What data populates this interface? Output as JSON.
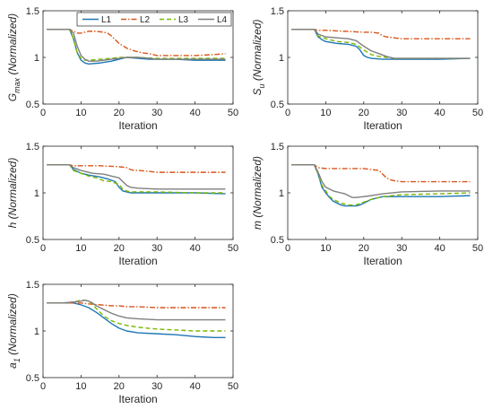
{
  "chart_data": {
    "type": "line",
    "legend": {
      "placement": "top",
      "entries": [
        "L1",
        "L2",
        "L3",
        "L4"
      ]
    },
    "series_styles": [
      {
        "name": "L1",
        "color": "#1f77b4",
        "dash": "solid"
      },
      {
        "name": "L2",
        "color": "#d9541a",
        "dash": "dashdot"
      },
      {
        "name": "L3",
        "color": "#7ab800",
        "dash": "dashed"
      },
      {
        "name": "L4",
        "color": "#7f7f7f",
        "dash": "solid"
      }
    ],
    "xlim": [
      0,
      50
    ],
    "ylim": [
      0.5,
      1.5
    ],
    "xticks": [
      "0",
      "10",
      "20",
      "30",
      "40",
      "50"
    ],
    "yticks": [
      "0.5",
      "1",
      "1.5"
    ],
    "grid": false,
    "panels": [
      {
        "xlabel": "Iteration",
        "ylabel_main": "G",
        "ylabel_sub": "max",
        "ylabel_rest": " (Normalized)",
        "series": [
          {
            "name": "L1",
            "x": [
              1,
              7,
              8,
              9,
              10,
              11,
              12,
              15,
              18,
              20,
              22,
              25,
              28,
              30,
              35,
              40,
              48
            ],
            "y": [
              1.3,
              1.3,
              1.2,
              1.05,
              0.97,
              0.94,
              0.93,
              0.94,
              0.96,
              0.98,
              1.0,
              0.99,
              0.98,
              0.98,
              0.98,
              0.97,
              0.97
            ]
          },
          {
            "name": "L2",
            "x": [
              1,
              7,
              8,
              9,
              10,
              12,
              14,
              16,
              17,
              18,
              20,
              22,
              24,
              26,
              28,
              30,
              35,
              40,
              45,
              48
            ],
            "y": [
              1.3,
              1.3,
              1.28,
              1.26,
              1.26,
              1.28,
              1.28,
              1.27,
              1.26,
              1.23,
              1.15,
              1.1,
              1.07,
              1.05,
              1.04,
              1.02,
              1.02,
              1.02,
              1.03,
              1.04
            ]
          },
          {
            "name": "L3",
            "x": [
              1,
              7,
              8,
              9,
              10,
              11,
              12,
              15,
              18,
              20,
              22,
              25,
              30,
              35,
              40,
              48
            ],
            "y": [
              1.3,
              1.3,
              1.2,
              1.05,
              0.99,
              0.97,
              0.97,
              0.98,
              0.99,
              1.0,
              1.0,
              1.0,
              0.99,
              0.99,
              0.99,
              0.99
            ]
          },
          {
            "name": "L4",
            "x": [
              1,
              7,
              8,
              9,
              10,
              11,
              12,
              14,
              16,
              18,
              20,
              22,
              25,
              28,
              30,
              35,
              40,
              48
            ],
            "y": [
              1.3,
              1.3,
              1.26,
              1.12,
              1.02,
              0.98,
              0.96,
              0.96,
              0.97,
              0.98,
              0.99,
              1.0,
              1.0,
              0.99,
              0.98,
              0.98,
              0.98,
              0.98
            ]
          }
        ]
      },
      {
        "xlabel": "Iteration",
        "ylabel_main": "S",
        "ylabel_sub": "u",
        "ylabel_rest": " (Normalized)",
        "series": [
          {
            "name": "L1",
            "x": [
              1,
              7,
              8,
              9,
              10,
              13,
              16,
              18,
              19,
              20,
              21,
              22,
              25,
              28,
              30,
              35,
              40,
              48
            ],
            "y": [
              1.3,
              1.3,
              1.22,
              1.19,
              1.17,
              1.15,
              1.14,
              1.12,
              1.08,
              1.02,
              1.0,
              0.99,
              0.98,
              0.98,
              0.98,
              0.98,
              0.98,
              0.99
            ]
          },
          {
            "name": "L2",
            "x": [
              1,
              7,
              8,
              10,
              15,
              20,
              22,
              24,
              25,
              26,
              28,
              30,
              35,
              40,
              48
            ],
            "y": [
              1.3,
              1.3,
              1.29,
              1.29,
              1.28,
              1.27,
              1.27,
              1.26,
              1.23,
              1.22,
              1.21,
              1.2,
              1.2,
              1.2,
              1.2
            ]
          },
          {
            "name": "L3",
            "x": [
              1,
              7,
              8,
              10,
              13,
              16,
              18,
              20,
              22,
              24,
              26,
              28,
              30,
              35,
              48
            ],
            "y": [
              1.3,
              1.3,
              1.23,
              1.2,
              1.17,
              1.16,
              1.14,
              1.08,
              1.03,
              1.01,
              1.0,
              0.99,
              0.99,
              0.99,
              0.99
            ]
          },
          {
            "name": "L4",
            "x": [
              1,
              7,
              8,
              10,
              13,
              16,
              18,
              20,
              22,
              24,
              26,
              28,
              30,
              35,
              40,
              48
            ],
            "y": [
              1.3,
              1.3,
              1.25,
              1.22,
              1.21,
              1.2,
              1.18,
              1.12,
              1.07,
              1.04,
              1.01,
              0.99,
              0.99,
              0.99,
              0.99,
              0.99
            ]
          }
        ]
      },
      {
        "xlabel": "Iteration",
        "ylabel_main": "h",
        "ylabel_sub": "",
        "ylabel_rest": " (Normalized)",
        "series": [
          {
            "name": "L1",
            "x": [
              1,
              7,
              8,
              10,
              12,
              15,
              17,
              19,
              20,
              21,
              22,
              23,
              25,
              30,
              35,
              40,
              48
            ],
            "y": [
              1.3,
              1.3,
              1.25,
              1.21,
              1.19,
              1.17,
              1.15,
              1.12,
              1.06,
              1.02,
              1.01,
              1.0,
              1.0,
              1.0,
              1.0,
              1.0,
              0.99
            ]
          },
          {
            "name": "L2",
            "x": [
              1,
              7,
              8,
              10,
              15,
              20,
              22,
              23,
              24,
              25,
              28,
              30,
              35,
              40,
              48
            ],
            "y": [
              1.3,
              1.3,
              1.29,
              1.29,
              1.29,
              1.28,
              1.27,
              1.25,
              1.24,
              1.24,
              1.23,
              1.22,
              1.22,
              1.22,
              1.22
            ]
          },
          {
            "name": "L3",
            "x": [
              1,
              7,
              8,
              10,
              12,
              14,
              16,
              18,
              20,
              21,
              22,
              23,
              25,
              30,
              40,
              48
            ],
            "y": [
              1.3,
              1.3,
              1.24,
              1.21,
              1.18,
              1.16,
              1.13,
              1.12,
              1.09,
              1.04,
              1.02,
              1.01,
              1.01,
              1.01,
              1.0,
              1.0
            ]
          },
          {
            "name": "L4",
            "x": [
              1,
              7,
              8,
              10,
              13,
              16,
              18,
              20,
              21,
              22,
              23,
              25,
              30,
              35,
              40,
              48
            ],
            "y": [
              1.3,
              1.3,
              1.27,
              1.24,
              1.21,
              1.2,
              1.18,
              1.16,
              1.12,
              1.08,
              1.06,
              1.05,
              1.04,
              1.04,
              1.04,
              1.04
            ]
          }
        ]
      },
      {
        "xlabel": "Iteration",
        "ylabel_main": "m",
        "ylabel_sub": "",
        "ylabel_rest": " (Normalized)",
        "series": [
          {
            "name": "L1",
            "x": [
              1,
              7,
              8,
              9,
              10,
              11,
              12,
              13,
              14,
              15,
              16,
              18,
              19,
              20,
              22,
              25,
              28,
              30,
              35,
              40,
              48
            ],
            "y": [
              1.3,
              1.3,
              1.2,
              1.06,
              1.0,
              0.95,
              0.91,
              0.89,
              0.87,
              0.86,
              0.86,
              0.86,
              0.87,
              0.89,
              0.93,
              0.96,
              0.96,
              0.96,
              0.96,
              0.96,
              0.97
            ]
          },
          {
            "name": "L2",
            "x": [
              1,
              7,
              8,
              10,
              15,
              20,
              22,
              24,
              25,
              26,
              27,
              28,
              30,
              35,
              40,
              48
            ],
            "y": [
              1.3,
              1.3,
              1.27,
              1.26,
              1.26,
              1.26,
              1.25,
              1.24,
              1.2,
              1.16,
              1.14,
              1.13,
              1.12,
              1.12,
              1.12,
              1.12
            ]
          },
          {
            "name": "L3",
            "x": [
              1,
              7,
              8,
              9,
              10,
              11,
              12,
              14,
              16,
              18,
              20,
              22,
              25,
              30,
              40,
              48
            ],
            "y": [
              1.3,
              1.3,
              1.2,
              1.08,
              1.02,
              0.96,
              0.93,
              0.89,
              0.87,
              0.87,
              0.9,
              0.93,
              0.96,
              0.98,
              0.99,
              1.0
            ]
          },
          {
            "name": "L4",
            "x": [
              1,
              7,
              8,
              9,
              10,
              12,
              14,
              15,
              16,
              17,
              18,
              20,
              22,
              25,
              30,
              40,
              48
            ],
            "y": [
              1.3,
              1.3,
              1.22,
              1.12,
              1.06,
              1.02,
              1.0,
              0.99,
              0.97,
              0.95,
              0.95,
              0.96,
              0.97,
              0.99,
              1.01,
              1.02,
              1.02
            ]
          }
        ]
      },
      {
        "xlabel": "Iteration",
        "ylabel_main": "a",
        "ylabel_sub": "1",
        "ylabel_rest": " (Normalized)",
        "series": [
          {
            "name": "L1",
            "x": [
              1,
              5,
              8,
              10,
              12,
              14,
              16,
              18,
              20,
              22,
              25,
              30,
              35,
              40,
              45,
              48
            ],
            "y": [
              1.3,
              1.3,
              1.3,
              1.28,
              1.25,
              1.2,
              1.14,
              1.08,
              1.03,
              1.0,
              0.98,
              0.97,
              0.96,
              0.94,
              0.93,
              0.93
            ]
          },
          {
            "name": "L2",
            "x": [
              1,
              5,
              8,
              10,
              12,
              15,
              18,
              20,
              22,
              25,
              30,
              40,
              48
            ],
            "y": [
              1.3,
              1.3,
              1.3,
              1.3,
              1.29,
              1.28,
              1.27,
              1.27,
              1.26,
              1.26,
              1.25,
              1.25,
              1.25
            ]
          },
          {
            "name": "L3",
            "x": [
              1,
              5,
              8,
              10,
              11,
              12,
              13,
              14,
              16,
              18,
              20,
              22,
              25,
              30,
              40,
              48
            ],
            "y": [
              1.3,
              1.3,
              1.31,
              1.33,
              1.33,
              1.32,
              1.29,
              1.24,
              1.16,
              1.11,
              1.08,
              1.06,
              1.04,
              1.02,
              1.0,
              1.0
            ]
          },
          {
            "name": "L4",
            "x": [
              1,
              5,
              8,
              10,
              11,
              12,
              13,
              14,
              16,
              18,
              20,
              22,
              25,
              30,
              35,
              40,
              48
            ],
            "y": [
              1.3,
              1.3,
              1.31,
              1.32,
              1.33,
              1.32,
              1.3,
              1.27,
              1.23,
              1.19,
              1.16,
              1.14,
              1.13,
              1.12,
              1.12,
              1.12,
              1.12
            ]
          }
        ]
      }
    ]
  }
}
